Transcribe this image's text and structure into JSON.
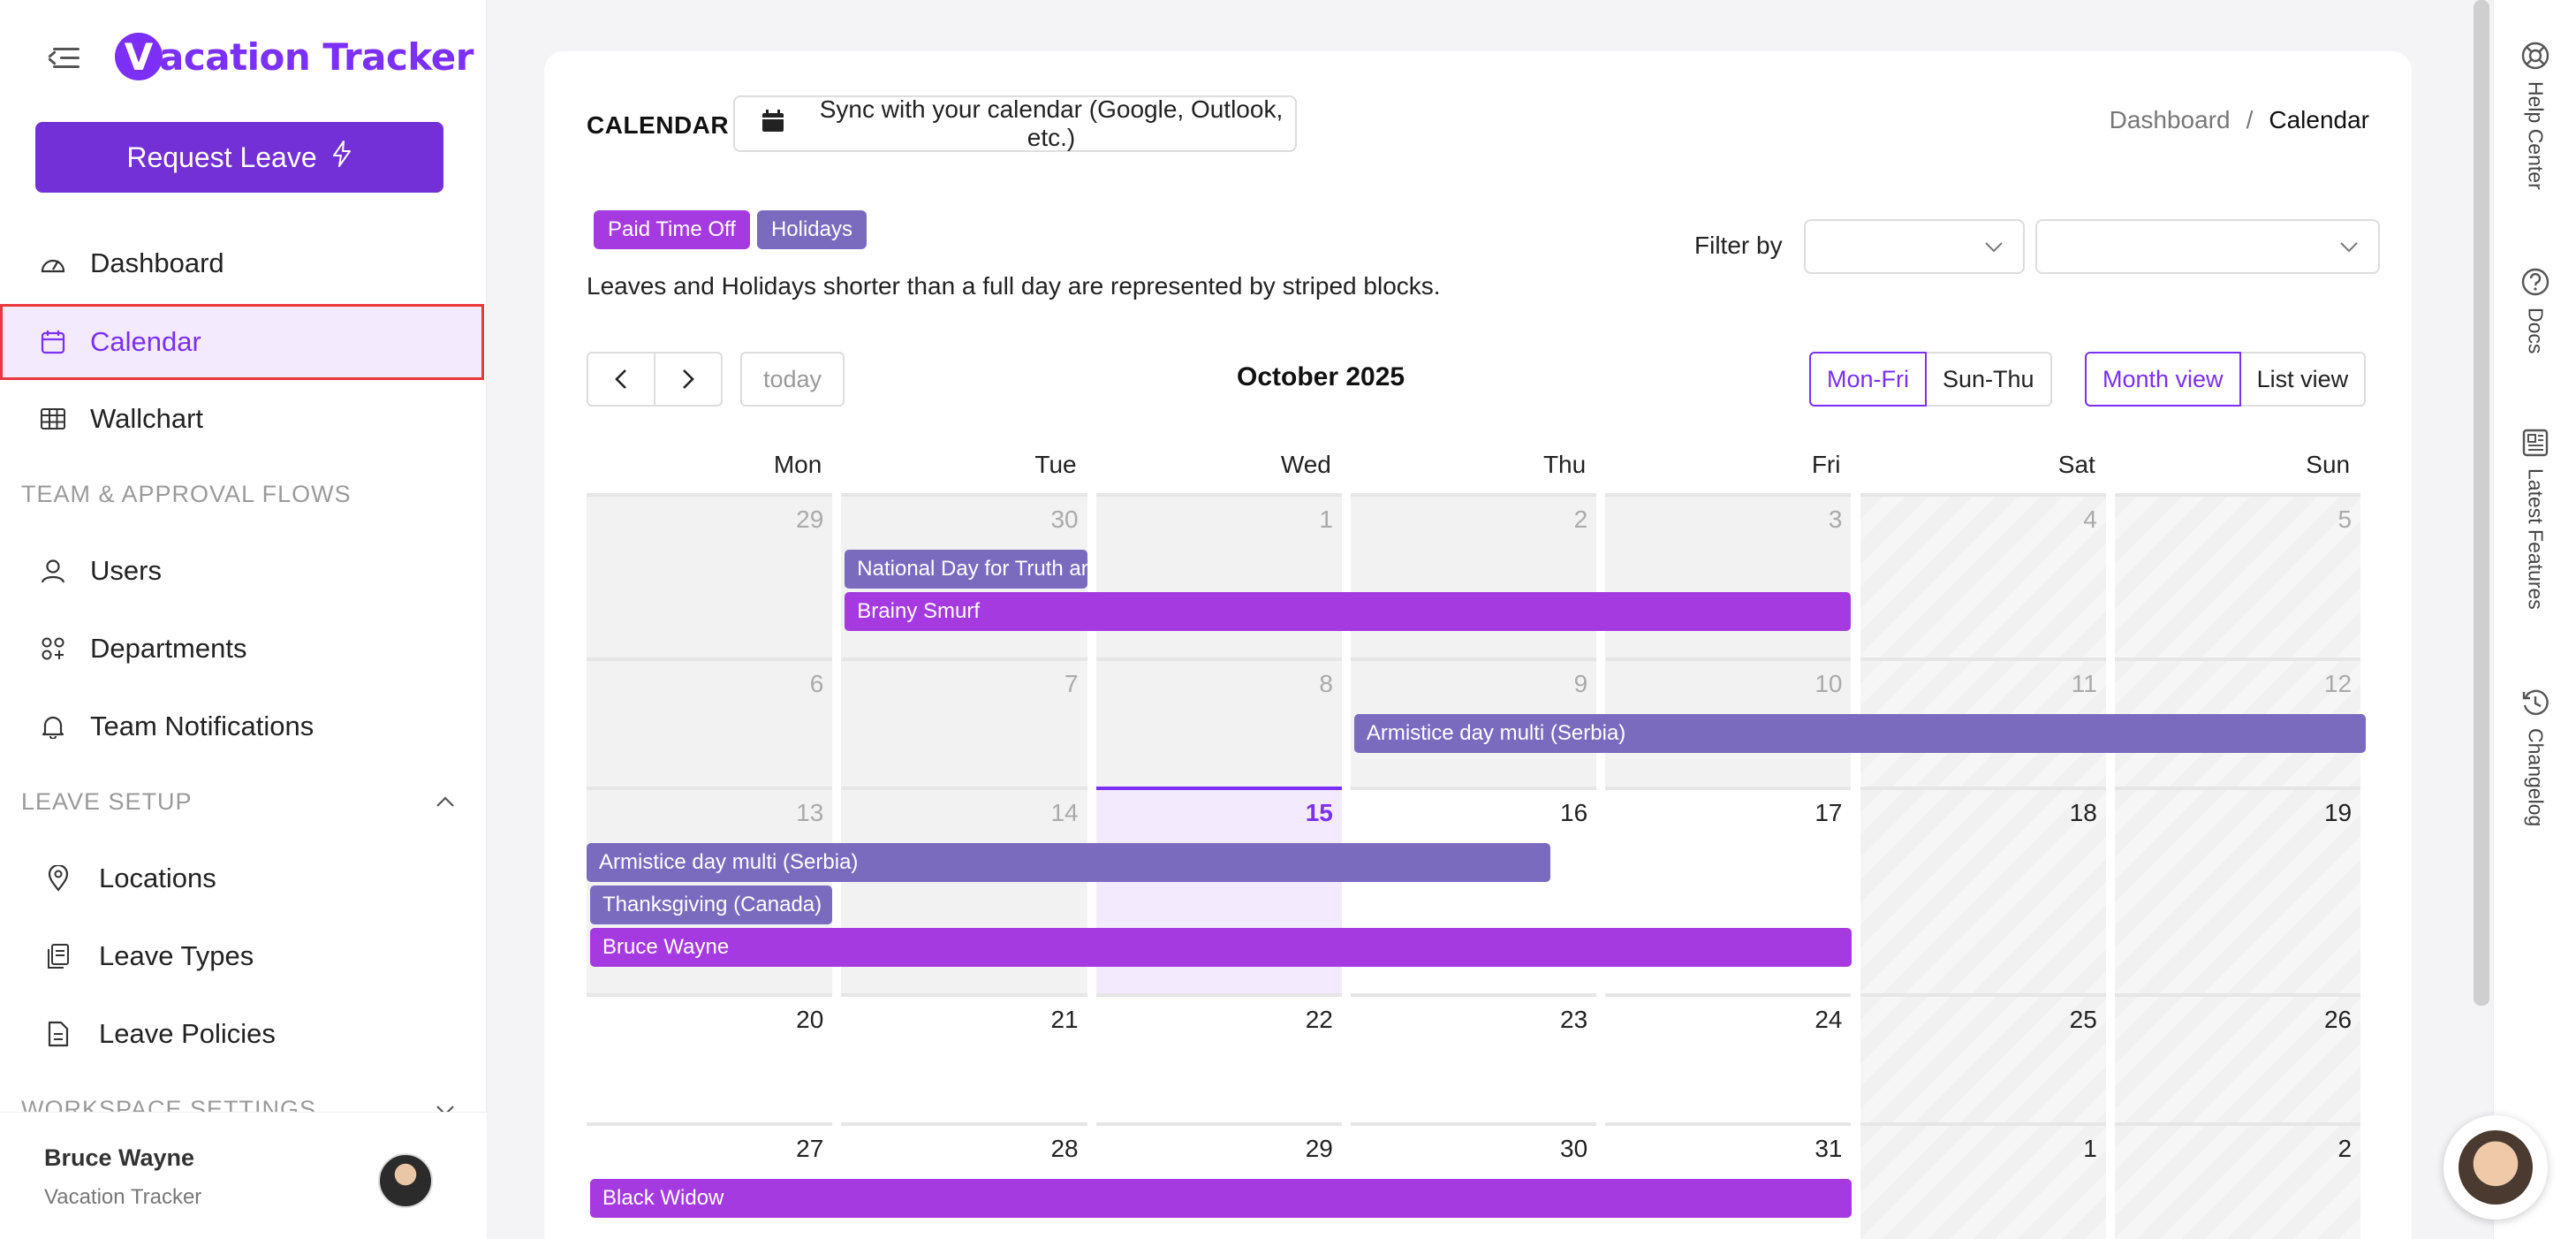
{
  "app": {
    "logo_letter": "V",
    "logo_rest": "acation Tracker",
    "request_leave": "Request Leave",
    "user_name": "Bruce Wayne",
    "user_org": "Vacation Tracker"
  },
  "sidebar": {
    "main_items": [
      "Dashboard",
      "Calendar",
      "Wallchart"
    ],
    "section_team": "TEAM & APPROVAL FLOWS",
    "team_items": [
      "Users",
      "Departments",
      "Team Notifications"
    ],
    "section_leave": "LEAVE SETUP",
    "leave_items": [
      "Locations",
      "Leave Types",
      "Leave Policies"
    ],
    "section_workspace": "WORKSPACE SETTINGS"
  },
  "header": {
    "title": "CALENDAR",
    "sync_label": "Sync with your calendar (Google, Outlook, etc.)",
    "breadcrumb_parent": "Dashboard",
    "breadcrumb_sep": "/",
    "breadcrumb_current": "Calendar"
  },
  "legend": {
    "pto": "Paid Time Off",
    "holidays": "Holidays",
    "note": "Leaves and Holidays shorter than a full day are represented by striped blocks."
  },
  "filter": {
    "label": "Filter by",
    "select1_value": "",
    "select2_value": ""
  },
  "toolbar": {
    "today": "today",
    "month_title": "October 2025",
    "week_on": "Mon-Fri",
    "week_off": "Sun-Thu",
    "view_on": "Month view",
    "view_off": "List view"
  },
  "calendar": {
    "weekdays": [
      "Mon",
      "Tue",
      "Wed",
      "Thu",
      "Fri",
      "Sat",
      "Sun"
    ],
    "weeks": [
      [
        "29",
        "30",
        "1",
        "2",
        "3",
        "4",
        "5"
      ],
      [
        "6",
        "7",
        "8",
        "9",
        "10",
        "11",
        "12"
      ],
      [
        "13",
        "14",
        "15",
        "16",
        "17",
        "18",
        "19"
      ],
      [
        "20",
        "21",
        "22",
        "23",
        "24",
        "25",
        "26"
      ],
      [
        "27",
        "28",
        "29",
        "30",
        "31",
        "1",
        "2"
      ]
    ],
    "events": [
      {
        "week": 0,
        "start": 1,
        "end": 1,
        "type": "hol",
        "label": "National Day for Truth and Reconciliation"
      },
      {
        "week": 0,
        "start": 1,
        "end": 4,
        "type": "pto",
        "label": "Brainy Smurf"
      },
      {
        "week": 1,
        "start": 3,
        "end": 6,
        "type": "hol",
        "label": "Armistice day multi (Serbia)"
      },
      {
        "week": 2,
        "start": 0,
        "end": 3,
        "type": "hol",
        "label": "Armistice day multi (Serbia)"
      },
      {
        "week": 2,
        "start": 0,
        "end": 0,
        "type": "hol",
        "label": "Thanksgiving (Canada)"
      },
      {
        "week": 2,
        "start": 0,
        "end": 4,
        "type": "pto",
        "label": "Bruce Wayne"
      },
      {
        "week": 4,
        "start": 0,
        "end": 4,
        "type": "pto",
        "label": "Black Widow"
      }
    ]
  },
  "rail": [
    "Help Center",
    "Docs",
    "Latest Features",
    "Changelog"
  ],
  "colors": {
    "accent": "#7b2ff7",
    "pto": "#a53ae0",
    "holiday": "#7a6bbf"
  }
}
